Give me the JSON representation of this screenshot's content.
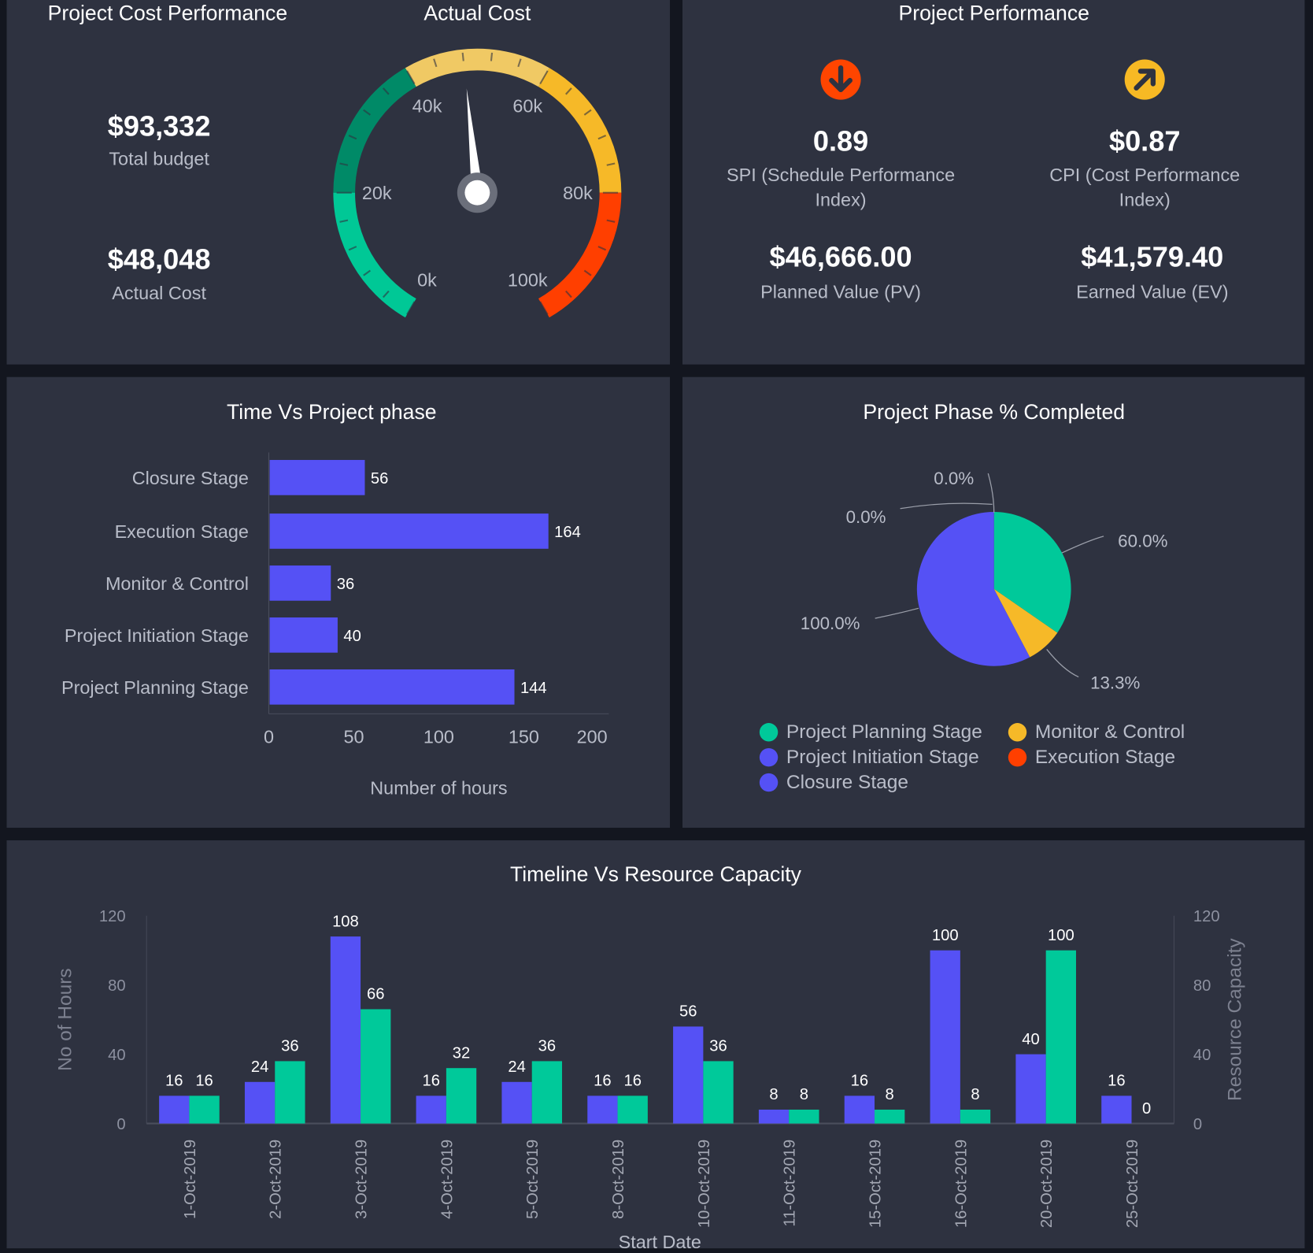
{
  "colors": {
    "blue": "#5551f5",
    "teal": "#00c99a",
    "darkgreen": "#008a67",
    "lightyellow": "#f0c964",
    "yellow": "#f6b928",
    "red": "#ff3f00",
    "panel": "#2e3240"
  },
  "cost": {
    "title": "Project Cost Performance",
    "total_budget": "$93,332",
    "total_budget_label": "Total budget",
    "actual_cost": "$48,048",
    "actual_cost_label": "Actual Cost"
  },
  "gauge": {
    "title": "Actual Cost",
    "value": 48048,
    "min": 0,
    "max": 100000,
    "ticks": [
      "0k",
      "20k",
      "40k",
      "60k",
      "80k",
      "100k"
    ],
    "bands": [
      {
        "from": 0,
        "to": 20000,
        "color": "#00c896"
      },
      {
        "from": 20000,
        "to": 40000,
        "color": "#008a67"
      },
      {
        "from": 40000,
        "to": 60000,
        "color": "#f0c964"
      },
      {
        "from": 60000,
        "to": 80000,
        "color": "#f6b928"
      },
      {
        "from": 80000,
        "to": 100000,
        "color": "#ff3f00"
      }
    ]
  },
  "performance": {
    "title": "Project Performance",
    "spi": {
      "value": "0.89",
      "label": "SPI (Schedule Performance",
      "label2": "Index)",
      "icon": "arrow-down-circle-icon",
      "color": "#ff4500"
    },
    "cpi": {
      "value": "$0.87",
      "label": "CPI (Cost Performance",
      "label2": "Index)",
      "icon": "arrow-up-right-circle-icon",
      "color": "#f7b924"
    },
    "pv": {
      "value": "$46,666.00",
      "label": "Planned Value (PV)"
    },
    "ev": {
      "value": "$41,579.40",
      "label": "Earned Value (EV)"
    }
  },
  "chart_data": [
    {
      "type": "bar",
      "orientation": "horizontal",
      "title": "Time Vs Project phase",
      "xlabel": "Number of hours",
      "ylabel": "",
      "xlim": [
        0,
        200
      ],
      "xticks": [
        "0",
        "50",
        "100",
        "150",
        "200"
      ],
      "categories": [
        "Closure Stage",
        "Execution Stage",
        "Monitor & Control",
        "Project Initiation Stage",
        "Project Planning Stage"
      ],
      "values": [
        56,
        164,
        36,
        40,
        144
      ],
      "color": "#5551f5"
    },
    {
      "type": "pie",
      "title": "Project Phase % Completed",
      "categories": [
        "Project Planning Stage",
        "Monitor & Control",
        "Project Initiation Stage",
        "Execution Stage",
        "Closure Stage"
      ],
      "values": [
        60.0,
        13.3,
        100.0,
        0.0,
        0.0
      ],
      "labels": [
        "60.0%",
        "13.3%",
        "100.0%",
        "0.0%",
        "0.0%"
      ],
      "colors": [
        "#00c99a",
        "#f6b928",
        "#5551f5",
        "#ff3f00",
        "#5551f5"
      ],
      "legend": {
        "placement": "bottom",
        "items": [
          {
            "name": "Project Planning Stage",
            "color": "#00c99a"
          },
          {
            "name": "Project Initiation Stage",
            "color": "#5551f5"
          },
          {
            "name": "Closure Stage",
            "color": "#5551f5"
          },
          {
            "name": "Monitor & Control",
            "color": "#f6b928"
          },
          {
            "name": "Execution Stage",
            "color": "#ff3f00"
          }
        ]
      }
    },
    {
      "type": "bar",
      "title": "Timeline Vs Resource Capacity",
      "xlabel": "Start Date",
      "ylabel": "No of Hours",
      "y2label": "Resource Capacity",
      "ylim": [
        0,
        120
      ],
      "yticks": [
        "0",
        "40",
        "80",
        "120"
      ],
      "categories": [
        "1-Oct-2019",
        "2-Oct-2019",
        "3-Oct-2019",
        "4-Oct-2019",
        "5-Oct-2019",
        "8-Oct-2019",
        "10-Oct-2019",
        "11-Oct-2019",
        "15-Oct-2019",
        "16-Oct-2019",
        "20-Oct-2019",
        "25-Oct-2019"
      ],
      "series": [
        {
          "values": [
            16,
            24,
            108,
            16,
            24,
            16,
            56,
            8,
            16,
            100,
            40,
            16
          ],
          "color": "#5551f5"
        },
        {
          "values": [
            16,
            36,
            66,
            32,
            36,
            16,
            36,
            8,
            8,
            8,
            100,
            0
          ],
          "color": "#00c99a"
        }
      ]
    }
  ]
}
